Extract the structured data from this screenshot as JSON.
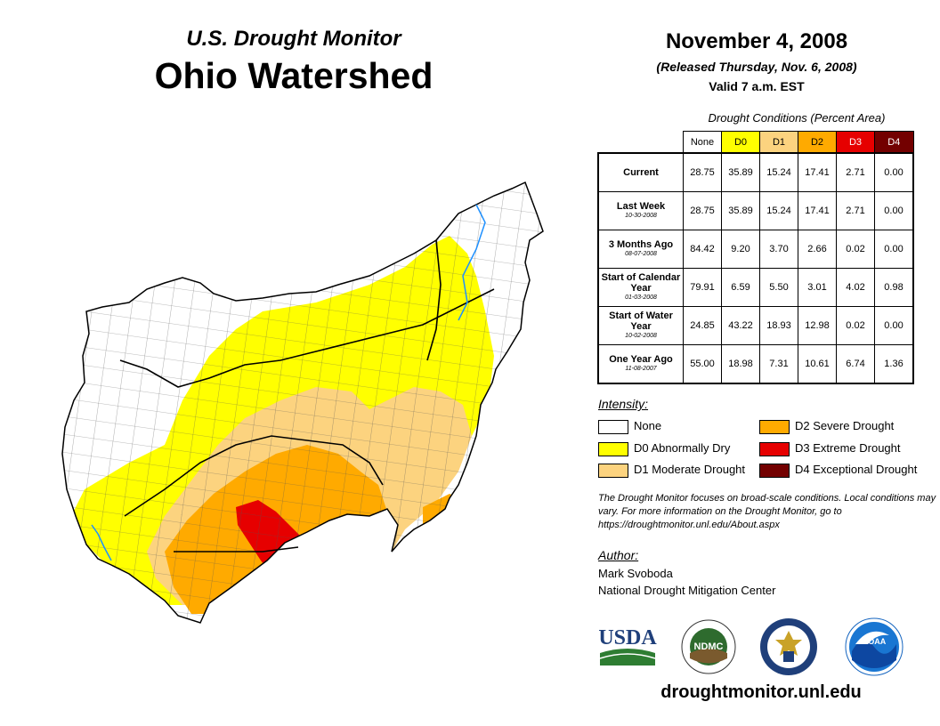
{
  "header": {
    "subtitle": "U.S. Drought Monitor",
    "title": "Ohio Watershed",
    "date": "November 4, 2008",
    "released": "(Released Thursday, Nov. 6, 2008)",
    "valid": "Valid 7 a.m. EST"
  },
  "table": {
    "title": "Drought Conditions (Percent Area)",
    "columns": [
      {
        "label": "None",
        "color": "#ffffff",
        "text_color": "#000000"
      },
      {
        "label": "D0",
        "color": "#ffff00",
        "text_color": "#000000"
      },
      {
        "label": "D1",
        "color": "#fcd37f",
        "text_color": "#000000"
      },
      {
        "label": "D2",
        "color": "#ffaa00",
        "text_color": "#000000"
      },
      {
        "label": "D3",
        "color": "#e60000",
        "text_color": "#ffffff"
      },
      {
        "label": "D4",
        "color": "#730000",
        "text_color": "#ffffff"
      }
    ],
    "rows": [
      {
        "label": "Current",
        "date": "",
        "values": [
          "28.75",
          "35.89",
          "15.24",
          "17.41",
          "2.71",
          "0.00"
        ]
      },
      {
        "label": "Last Week",
        "date": "10-30-2008",
        "values": [
          "28.75",
          "35.89",
          "15.24",
          "17.41",
          "2.71",
          "0.00"
        ]
      },
      {
        "label": "3 Months Ago",
        "date": "08-07-2008",
        "values": [
          "84.42",
          "9.20",
          "3.70",
          "2.66",
          "0.02",
          "0.00"
        ]
      },
      {
        "label": "Start of Calendar Year",
        "date": "01-03-2008",
        "values": [
          "79.91",
          "6.59",
          "5.50",
          "3.01",
          "4.02",
          "0.98"
        ]
      },
      {
        "label": "Start of Water Year",
        "date": "10-02-2008",
        "values": [
          "24.85",
          "43.22",
          "18.93",
          "12.98",
          "0.02",
          "0.00"
        ]
      },
      {
        "label": "One Year Ago",
        "date": "11-08-2007",
        "values": [
          "55.00",
          "18.98",
          "7.31",
          "10.61",
          "6.74",
          "1.36"
        ]
      }
    ]
  },
  "legend": {
    "label": "Intensity:",
    "items": [
      {
        "label": "None",
        "color": "#ffffff"
      },
      {
        "label": "D0 Abnormally Dry",
        "color": "#ffff00"
      },
      {
        "label": "D1 Moderate Drought",
        "color": "#fcd37f"
      },
      {
        "label": "D2 Severe Drought",
        "color": "#ffaa00"
      },
      {
        "label": "D3 Extreme Drought",
        "color": "#e60000"
      },
      {
        "label": "D4 Exceptional Drought",
        "color": "#730000"
      }
    ]
  },
  "note": "The Drought Monitor focuses on broad-scale conditions. Local conditions may vary. For more information on the Drought Monitor, go to https://droughtmonitor.unl.edu/About.aspx",
  "author": {
    "label": "Author:",
    "name": "Mark Svoboda",
    "org": "National Drought Mitigation Center"
  },
  "logos": {
    "usda": "USDA",
    "ndmc": "NDMC",
    "noaa": "NOAA"
  },
  "website": "droughtmonitor.unl.edu"
}
